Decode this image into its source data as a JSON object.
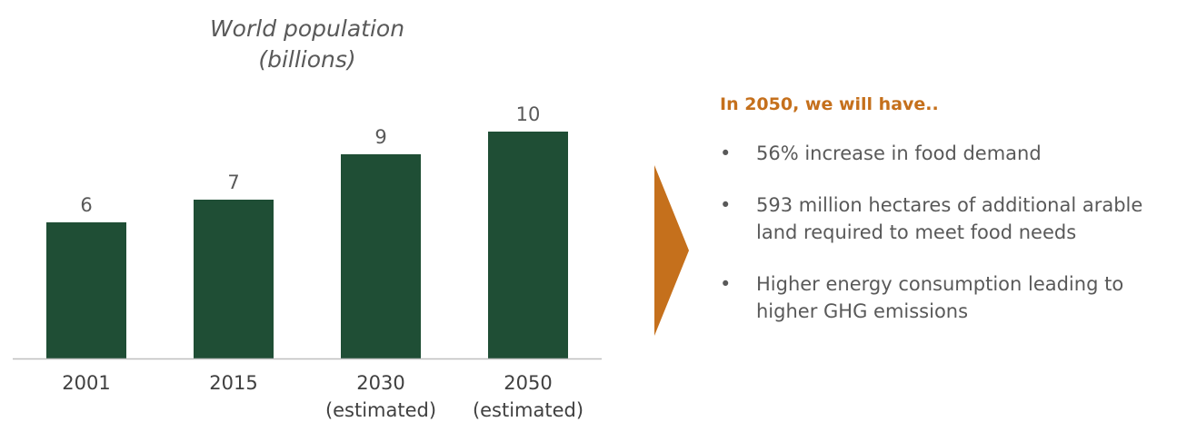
{
  "chart_data": {
    "type": "bar",
    "title_lines": [
      "World population",
      "(billions)"
    ],
    "categories": [
      [
        "2001"
      ],
      [
        "2015"
      ],
      [
        "2030",
        "(estimated)"
      ],
      [
        "2050",
        "(estimated)"
      ]
    ],
    "values": [
      6,
      7,
      9,
      10
    ],
    "data_labels": [
      "6",
      "7",
      "9",
      "10"
    ],
    "bar_color": "#1f4e35",
    "axis_color": "#bfbfbf",
    "ylim": [
      0,
      10
    ],
    "grid": false,
    "legend": "none"
  },
  "arrow_color": "#c5701c",
  "panel": {
    "heading": "In 2050, we will have..",
    "heading_color": "#c5701c",
    "bullet": "•",
    "items": [
      "56% increase in food demand",
      "593 million hectares of additional arable land required to meet food needs",
      "Higher energy consumption leading to higher GHG emissions"
    ]
  }
}
